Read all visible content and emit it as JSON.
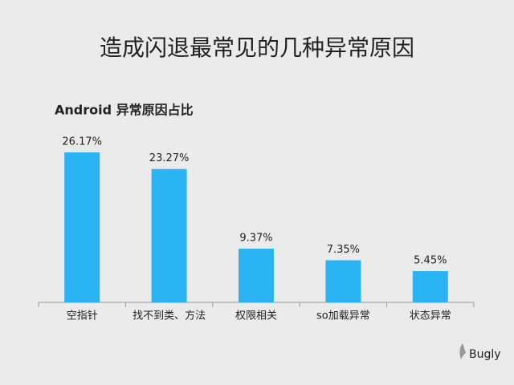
{
  "chart_data": {
    "type": "bar",
    "title": "造成闪退最常见的几种异常原因",
    "subtitle": "Android 异常原因占比",
    "categories": [
      "空指针",
      "找不到类、方法",
      "权限相关",
      "so加载异常",
      "状态异常"
    ],
    "values": [
      26.17,
      23.27,
      9.37,
      7.35,
      5.45
    ],
    "value_labels": [
      "26.17%",
      "23.27%",
      "9.37%",
      "7.35%",
      "5.45%"
    ],
    "color": "#2ab4f4",
    "watermark": "Bugly"
  }
}
